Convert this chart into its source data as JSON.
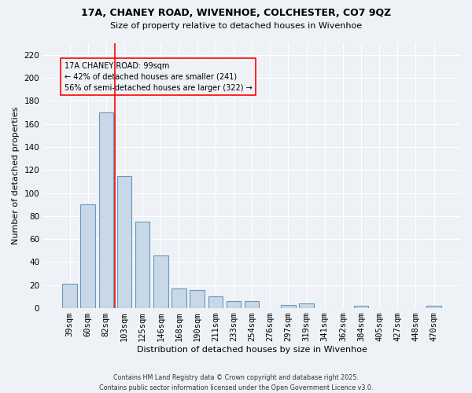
{
  "title1": "17A, CHANEY ROAD, WIVENHOE, COLCHESTER, CO7 9QZ",
  "title2": "Size of property relative to detached houses in Wivenhoe",
  "xlabel": "Distribution of detached houses by size in Wivenhoe",
  "ylabel": "Number of detached properties",
  "bar_color": "#c8d8e8",
  "bar_edge_color": "#6699bb",
  "categories": [
    "39sqm",
    "60sqm",
    "82sqm",
    "103sqm",
    "125sqm",
    "146sqm",
    "168sqm",
    "190sqm",
    "211sqm",
    "233sqm",
    "254sqm",
    "276sqm",
    "297sqm",
    "319sqm",
    "341sqm",
    "362sqm",
    "384sqm",
    "405sqm",
    "427sqm",
    "448sqm",
    "470sqm"
  ],
  "values": [
    21,
    90,
    170,
    115,
    75,
    46,
    17,
    16,
    10,
    6,
    6,
    0,
    3,
    4,
    0,
    0,
    2,
    0,
    0,
    0,
    2
  ],
  "ylim": [
    0,
    230
  ],
  "yticks": [
    0,
    20,
    40,
    60,
    80,
    100,
    120,
    140,
    160,
    180,
    200,
    220
  ],
  "red_line_index": 2.5,
  "annotation_title": "17A CHANEY ROAD: 99sqm",
  "annotation_line1": "← 42% of detached houses are smaller (241)",
  "annotation_line2": "56% of semi-detached houses are larger (322) →",
  "background_color": "#eef2f7",
  "grid_color": "#ffffff",
  "footer1": "Contains HM Land Registry data © Crown copyright and database right 2025.",
  "footer2": "Contains public sector information licensed under the Open Government Licence v3.0."
}
